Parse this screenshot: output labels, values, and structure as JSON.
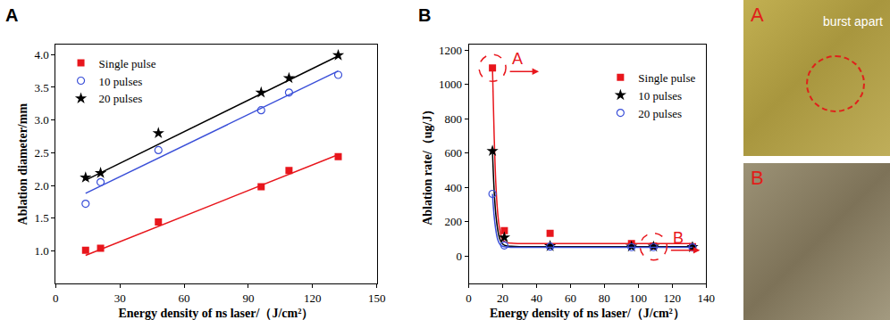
{
  "chart_data": [
    {
      "type": "scatter",
      "title": "A",
      "x_label": "Energy density of ns laser/（J/cm²）",
      "y_label": "Ablation diameter/mm",
      "xlim": [
        0,
        150
      ],
      "xticks": [
        0,
        30,
        60,
        90,
        120,
        150
      ],
      "ylim": [
        0.5,
        4.15
      ],
      "yticks": [
        {
          "value": 1,
          "label": "1.0"
        },
        {
          "value": 1.5,
          "label": "1.5"
        },
        {
          "value": 2,
          "label": "2.0"
        },
        {
          "value": 2.5,
          "label": "2.5"
        },
        {
          "value": 3,
          "label": "3.0"
        },
        {
          "value": 3.5,
          "label": "3.5"
        },
        {
          "value": 4,
          "label": "4.0"
        }
      ],
      "grid": false,
      "legend": "upper left",
      "series": [
        {
          "name": "Single pulse",
          "color": "#e8161c",
          "marker": "square",
          "line_style": "solid",
          "x": [
            14,
            21,
            48,
            96,
            109,
            132
          ],
          "values": [
            1.01,
            1.04,
            1.44,
            1.98,
            2.23,
            2.44
          ],
          "fit": {
            "x": [
              14,
              132
            ],
            "y": [
              0.93,
              2.47
            ]
          }
        },
        {
          "name": "10 pulses",
          "color": "#3a4fd8",
          "marker": "circle-open",
          "line_style": "solid",
          "x": [
            14,
            21,
            48,
            96,
            109,
            132
          ],
          "values": [
            1.72,
            2.05,
            2.54,
            3.15,
            3.42,
            3.69
          ],
          "fit": {
            "x": [
              14,
              132
            ],
            "y": [
              1.88,
              3.75
            ]
          }
        },
        {
          "name": "20 pulses",
          "color": "#000000",
          "marker": "star",
          "line_style": "solid",
          "x": [
            14,
            21,
            48,
            96,
            109,
            132
          ],
          "values": [
            2.12,
            2.19,
            2.8,
            3.42,
            3.64,
            3.99
          ],
          "fit": {
            "x": [
              14,
              132
            ],
            "y": [
              2.08,
              3.98
            ]
          }
        }
      ]
    },
    {
      "type": "scatter",
      "title": "B",
      "x_label": "Energy density of ns laser/（J/cm²）",
      "y_label": "Ablation rate/（ug/J）",
      "xlim": [
        0,
        140
      ],
      "xticks": [
        0,
        20,
        40,
        60,
        80,
        100,
        120,
        140
      ],
      "ylim": [
        -160,
        1230
      ],
      "yticks": [
        0,
        200,
        400,
        600,
        800,
        1000,
        1200
      ],
      "grid": false,
      "legend": "upper right",
      "series": [
        {
          "name": "Single pulse",
          "color": "#e8161c",
          "marker": "square",
          "line_style": "solid",
          "x": [
            14,
            21,
            48,
            96,
            109,
            132
          ],
          "values": [
            1095,
            148,
            132,
            72,
            58,
            55
          ],
          "fit": {
            "x": [
              14,
              15,
              16,
              17,
              18,
              19,
              20,
              22,
              25,
              30,
              40,
              60,
              100,
              132
            ],
            "y": [
              1095,
              700,
              420,
              260,
              170,
              120,
              95,
              80,
              75,
              73,
              72,
              72,
              72,
              72
            ]
          }
        },
        {
          "name": "10 pulses",
          "color": "#000000",
          "marker": "star",
          "line_style": "solid",
          "x": [
            14,
            21,
            48,
            96,
            109,
            132
          ],
          "values": [
            612,
            108,
            58,
            55,
            55,
            52
          ],
          "fit": {
            "x": [
              14,
              15,
              16,
              17,
              18,
              19,
              20,
              22,
              25,
              30,
              40,
              60,
              100,
              132
            ],
            "y": [
              612,
              380,
              240,
              160,
              110,
              85,
              70,
              60,
              57,
              55,
              55,
              55,
              55,
              55
            ]
          }
        },
        {
          "name": "20 pulses",
          "color": "#3a4fd8",
          "marker": "circle-open",
          "line_style": "solid",
          "x": [
            14,
            21,
            48,
            96,
            109,
            132
          ],
          "values": [
            362,
            62,
            55,
            52,
            52,
            50
          ],
          "fit": {
            "x": [
              14,
              15,
              16,
              17,
              18,
              19,
              20,
              22,
              25,
              30,
              40,
              60,
              100,
              132
            ],
            "y": [
              362,
              230,
              150,
              100,
              75,
              62,
              57,
              53,
              51,
              50,
              50,
              50,
              50,
              50
            ]
          }
        }
      ],
      "annotations": [
        {
          "text": "A",
          "x": 14,
          "y": 1095
        },
        {
          "text": "B",
          "x": 109,
          "y": 55
        }
      ]
    }
  ],
  "photos": [
    {
      "label": "A",
      "annotation": "burst apart"
    },
    {
      "label": "B"
    }
  ]
}
